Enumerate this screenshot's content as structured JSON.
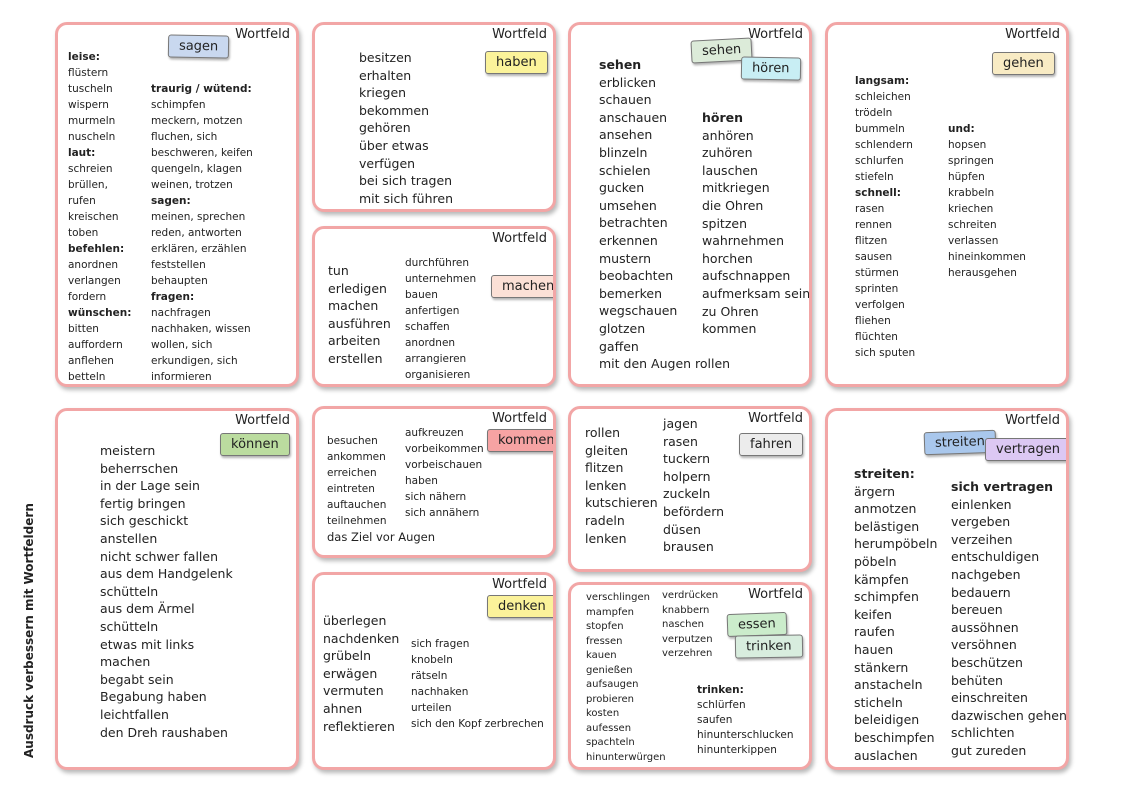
{
  "side_title": "Ausdruck verbessern mit Wortfeldern",
  "card_label": "Wortfeld",
  "tags": {
    "sagen": "sagen",
    "haben": "haben",
    "sehen": "sehen",
    "hoeren": "hören",
    "gehen": "gehen",
    "machen": "machen",
    "koennen": "können",
    "kommen": "kommen",
    "fahren": "fahren",
    "streiten": "streiten",
    "vertragen": "vertragen",
    "denken": "denken",
    "essen": "essen",
    "trinken": "trinken"
  },
  "colors": {
    "border": "#f2a6a6",
    "sagen": "#c9d8ef",
    "haben": "#fbf39a",
    "sehen": "#dcebd9",
    "hoeren": "#c8eef4",
    "gehen": "#f8ebc4",
    "machen": "#fbe0d6",
    "koennen": "#bbdc9f",
    "kommen": "#f6a3a3",
    "fahren": "#ececec",
    "streiten": "#a9c7ec",
    "vertragen": "#dcc8f3",
    "denken": "#fbf29a",
    "essen": "#cbeccb",
    "trinken": "#d8edde"
  },
  "sagen": {
    "col1": [
      {
        "t": "leise:",
        "b": true
      },
      {
        "t": "flüstern"
      },
      {
        "t": "tuscheln"
      },
      {
        "t": "wispern"
      },
      {
        "t": "murmeln"
      },
      {
        "t": "nuscheln"
      },
      {
        "t": "laut:",
        "b": true
      },
      {
        "t": "schreien"
      },
      {
        "t": "brüllen,"
      },
      {
        "t": "rufen"
      },
      {
        "t": "kreischen"
      },
      {
        "t": "toben"
      },
      {
        "t": "befehlen:",
        "b": true
      },
      {
        "t": "anordnen"
      },
      {
        "t": "verlangen"
      },
      {
        "t": "fordern"
      },
      {
        "t": "wünschen:",
        "b": true
      },
      {
        "t": "bitten"
      },
      {
        "t": "auffordern"
      },
      {
        "t": "anflehen"
      },
      {
        "t": "betteln"
      }
    ],
    "col2": [
      {
        "t": "traurig / wütend:",
        "b": true
      },
      {
        "t": "schimpfen"
      },
      {
        "t": "meckern,  motzen"
      },
      {
        "t": "fluchen,  sich"
      },
      {
        "t": "beschweren,  keifen"
      },
      {
        "t": "quengeln,  klagen"
      },
      {
        "t": "weinen,  trotzen"
      },
      {
        "t": "sagen:",
        "b": true
      },
      {
        "t": "meinen,  sprechen"
      },
      {
        "t": "reden,  antworten"
      },
      {
        "t": "erklären,  erzählen"
      },
      {
        "t": "feststellen"
      },
      {
        "t": "behaupten"
      },
      {
        "t": "fragen:",
        "b": true
      },
      {
        "t": "nachfragen"
      },
      {
        "t": "nachhaken,  wissen"
      },
      {
        "t": "wollen,  sich"
      },
      {
        "t": "erkundigen,  sich"
      },
      {
        "t": "informieren"
      }
    ]
  },
  "haben": {
    "col1": [
      {
        "t": "besitzen"
      },
      {
        "t": "erhalten"
      },
      {
        "t": "kriegen"
      },
      {
        "t": "bekommen"
      },
      {
        "t": "gehören"
      },
      {
        "t": "über  etwas"
      },
      {
        "t": "verfügen"
      },
      {
        "t": "bei  sich  tragen"
      },
      {
        "t": "mit  sich  führen"
      }
    ]
  },
  "sehen": {
    "col1": [
      {
        "t": "sehen",
        "b": true
      },
      {
        "t": "erblicken"
      },
      {
        "t": "schauen"
      },
      {
        "t": "anschauen"
      },
      {
        "t": "ansehen"
      },
      {
        "t": "blinzeln"
      },
      {
        "t": "schielen"
      },
      {
        "t": "gucken"
      },
      {
        "t": "umsehen"
      },
      {
        "t": "betrachten"
      },
      {
        "t": "erkennen"
      },
      {
        "t": "mustern"
      },
      {
        "t": "beobachten"
      },
      {
        "t": "bemerken"
      },
      {
        "t": "wegschauen"
      },
      {
        "t": "glotzen"
      },
      {
        "t": "gaffen"
      },
      {
        "t": "mit  den  Augen  rollen"
      }
    ],
    "col2": [
      {
        "t": "hören",
        "b": true
      },
      {
        "t": "anhören"
      },
      {
        "t": "zuhören"
      },
      {
        "t": "lauschen"
      },
      {
        "t": "mitkriegen"
      },
      {
        "t": "die  Ohren"
      },
      {
        "t": "spitzen"
      },
      {
        "t": "wahrnehmen"
      },
      {
        "t": "horchen"
      },
      {
        "t": "aufschnappen"
      },
      {
        "t": "aufmerksam  sein"
      },
      {
        "t": "zu  Ohren"
      },
      {
        "t": "kommen"
      }
    ]
  },
  "gehen": {
    "col1": [
      {
        "t": "langsam:",
        "b": true
      },
      {
        "t": "schleichen"
      },
      {
        "t": "trödeln"
      },
      {
        "t": "bummeln"
      },
      {
        "t": "schlendern"
      },
      {
        "t": "schlurfen"
      },
      {
        "t": "stiefeln"
      },
      {
        "t": "schnell:",
        "b": true
      },
      {
        "t": "rasen"
      },
      {
        "t": "rennen"
      },
      {
        "t": "flitzen"
      },
      {
        "t": "sausen"
      },
      {
        "t": "stürmen"
      },
      {
        "t": "sprinten"
      },
      {
        "t": "verfolgen"
      },
      {
        "t": "fliehen"
      },
      {
        "t": "flüchten"
      },
      {
        "t": "sich  sputen"
      }
    ],
    "col2": [
      {
        "t": "und:",
        "b": true
      },
      {
        "t": "hopsen"
      },
      {
        "t": "springen"
      },
      {
        "t": "hüpfen"
      },
      {
        "t": "krabbeln"
      },
      {
        "t": "kriechen"
      },
      {
        "t": "schreiten"
      },
      {
        "t": "verlassen"
      },
      {
        "t": "hineinkommen"
      },
      {
        "t": "herausgehen"
      }
    ]
  },
  "machen": {
    "col1": [
      {
        "t": "tun"
      },
      {
        "t": "erledigen"
      },
      {
        "t": "machen"
      },
      {
        "t": "ausführen"
      },
      {
        "t": "arbeiten"
      },
      {
        "t": "erstellen"
      }
    ],
    "col2": [
      {
        "t": "durchführen"
      },
      {
        "t": "unternehmen"
      },
      {
        "t": "bauen"
      },
      {
        "t": "anfertigen"
      },
      {
        "t": "schaffen"
      },
      {
        "t": "anordnen"
      },
      {
        "t": "arrangieren"
      },
      {
        "t": "organisieren"
      }
    ]
  },
  "koennen": {
    "col1": [
      {
        "t": "meistern"
      },
      {
        "t": "beherrschen"
      },
      {
        "t": "in  der  Lage  sein"
      },
      {
        "t": "fertig  bringen"
      },
      {
        "t": "sich  geschickt"
      },
      {
        "t": "anstellen"
      },
      {
        "t": "nicht  schwer  fallen"
      },
      {
        "t": "aus  dem  Handgelenk"
      },
      {
        "t": "schütteln"
      },
      {
        "t": "aus  dem  Ärmel"
      },
      {
        "t": "schütteln"
      },
      {
        "t": "etwas  mit  links"
      },
      {
        "t": "machen"
      },
      {
        "t": "begabt  sein"
      },
      {
        "t": "Begabung  haben"
      },
      {
        "t": "leichtfallen"
      },
      {
        "t": "den  Dreh  raushaben"
      }
    ]
  },
  "kommen": {
    "col1": [
      {
        "t": "besuchen"
      },
      {
        "t": "ankommen"
      },
      {
        "t": "erreichen"
      },
      {
        "t": "eintreten"
      },
      {
        "t": "auftauchen"
      },
      {
        "t": "teilnehmen"
      }
    ],
    "col2": [
      {
        "t": "aufkreuzen"
      },
      {
        "t": "vorbeikommen"
      },
      {
        "t": "vorbeischauen"
      },
      {
        "t": "haben"
      },
      {
        "t": "sich  nähern"
      },
      {
        "t": "sich  annähern"
      }
    ],
    "footer": "das  Ziel  vor  Augen"
  },
  "fahren": {
    "col1": [
      {
        "t": "rollen"
      },
      {
        "t": "gleiten"
      },
      {
        "t": "flitzen"
      },
      {
        "t": "lenken"
      },
      {
        "t": "kutschieren"
      },
      {
        "t": "radeln"
      },
      {
        "t": "lenken"
      }
    ],
    "col2": [
      {
        "t": "jagen"
      },
      {
        "t": "rasen"
      },
      {
        "t": "tuckern"
      },
      {
        "t": "holpern"
      },
      {
        "t": "zuckeln"
      },
      {
        "t": "befördern"
      },
      {
        "t": "düsen"
      },
      {
        "t": "brausen"
      }
    ]
  },
  "streiten": {
    "col1": [
      {
        "t": "streiten:",
        "b": true
      },
      {
        "t": "ärgern"
      },
      {
        "t": "anmotzen"
      },
      {
        "t": "belästigen"
      },
      {
        "t": "herumpöbeln"
      },
      {
        "t": "pöbeln"
      },
      {
        "t": "kämpfen"
      },
      {
        "t": "schimpfen"
      },
      {
        "t": "keifen"
      },
      {
        "t": "raufen"
      },
      {
        "t": "hauen"
      },
      {
        "t": "stänkern"
      },
      {
        "t": "anstacheln"
      },
      {
        "t": "sticheln"
      },
      {
        "t": "beleidigen"
      },
      {
        "t": "beschimpfen"
      },
      {
        "t": "auslachen"
      }
    ],
    "col2": [
      {
        "t": "sich  vertragen",
        "b": true
      },
      {
        "t": "einlenken"
      },
      {
        "t": "vergeben"
      },
      {
        "t": "verzeihen"
      },
      {
        "t": "entschuldigen"
      },
      {
        "t": "nachgeben"
      },
      {
        "t": "bedauern"
      },
      {
        "t": "bereuen"
      },
      {
        "t": "aussöhnen"
      },
      {
        "t": "versöhnen"
      },
      {
        "t": "beschützen"
      },
      {
        "t": "behüten"
      },
      {
        "t": "einschreiten"
      },
      {
        "t": "dazwischen  gehen"
      },
      {
        "t": "schlichten"
      },
      {
        "t": "gut  zureden"
      }
    ]
  },
  "denken": {
    "col1": [
      {
        "t": "überlegen"
      },
      {
        "t": "nachdenken"
      },
      {
        "t": "grübeln"
      },
      {
        "t": "erwägen"
      },
      {
        "t": "vermuten"
      },
      {
        "t": "ahnen"
      },
      {
        "t": "reflektieren"
      }
    ],
    "col2": [
      {
        "t": "sich  fragen"
      },
      {
        "t": "knobeln"
      },
      {
        "t": "rätseln"
      },
      {
        "t": "nachhaken"
      },
      {
        "t": "urteilen"
      },
      {
        "t": "sich  den  Kopf  zerbrechen"
      }
    ]
  },
  "essen": {
    "col1": [
      {
        "t": "verschlingen"
      },
      {
        "t": "mampfen"
      },
      {
        "t": "stopfen"
      },
      {
        "t": "fressen"
      },
      {
        "t": "kauen"
      },
      {
        "t": "genießen"
      },
      {
        "t": "aufsaugen"
      },
      {
        "t": "probieren"
      },
      {
        "t": "kosten"
      },
      {
        "t": "aufessen"
      },
      {
        "t": "spachteln"
      },
      {
        "t": "hinunterwürgen"
      }
    ],
    "col2": [
      {
        "t": "verdrücken"
      },
      {
        "t": "knabbern"
      },
      {
        "t": "naschen"
      },
      {
        "t": "verputzen"
      },
      {
        "t": "verzehren"
      }
    ],
    "col3": [
      {
        "t": "trinken:",
        "b": true
      },
      {
        "t": "schlürfen"
      },
      {
        "t": "saufen"
      },
      {
        "t": "hinunterschlucken"
      },
      {
        "t": "hinunterkippen"
      }
    ]
  }
}
